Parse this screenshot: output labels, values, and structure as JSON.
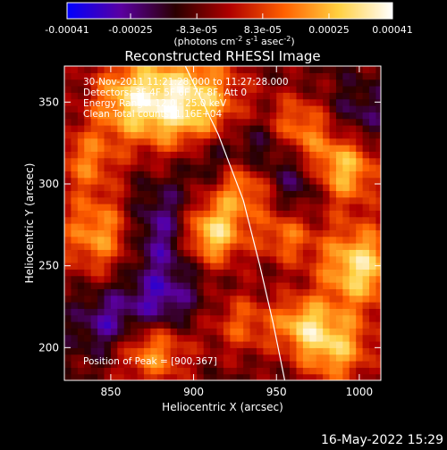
{
  "colorbar": {
    "tick_labels": [
      "-0.00041",
      "-0.00025",
      "-8.3e-05",
      "8.3e-05",
      "0.00025",
      "0.00041"
    ],
    "tick_values": [
      -0.00041,
      -0.00025,
      -8.3e-05,
      8.3e-05,
      0.00025,
      0.00041
    ],
    "range": [
      -0.00041,
      0.00041
    ],
    "units_prefix": "(photons cm",
    "units_exp1": "-2",
    "units_mid": " s",
    "units_exp2": "-1",
    "units_suffix": " asec",
    "units_exp3": "-2",
    "units_close": ")",
    "colors": [
      "#0000ff",
      "#5a00a0",
      "#2a0000",
      "#b00000",
      "#ff6000",
      "#ffd040",
      "#ffffff"
    ]
  },
  "chart_data": {
    "type": "heatmap",
    "title": "Reconstructed RHESSI Image",
    "xlabel": "Heliocentric X (arcsec)",
    "ylabel": "Heliocentric Y (arcsec)",
    "xlim": [
      822,
      1013
    ],
    "ylim": [
      180,
      372
    ],
    "x_ticks": [
      850,
      900,
      950,
      1000
    ],
    "y_ticks": [
      200,
      250,
      300,
      350
    ],
    "annotations": [
      "30-Nov-2011 11:21:28.000 to 11:27:28.000",
      "Detectors: 3F 4F 5F 6F 7F 8F, Att 0",
      "Energy Range: 12.0 - 25.0 keV",
      "Clean     Total counts: 1.16E+04"
    ],
    "peak_label": "Position of Peak = [900,367]",
    "peak": [
      900,
      367
    ],
    "limb_curve": [
      [
        895,
        372
      ],
      [
        915,
        330
      ],
      [
        930,
        290
      ],
      [
        940,
        250
      ],
      [
        948,
        215
      ],
      [
        955,
        180
      ]
    ],
    "hotspots": [
      {
        "x": 898,
        "y": 350,
        "a": 0.9,
        "s": 22
      },
      {
        "x": 862,
        "y": 352,
        "a": 0.7,
        "s": 18
      },
      {
        "x": 910,
        "y": 270,
        "a": 1.0,
        "s": 14
      },
      {
        "x": 930,
        "y": 300,
        "a": 0.7,
        "s": 14
      },
      {
        "x": 962,
        "y": 335,
        "a": 0.6,
        "s": 14
      },
      {
        "x": 990,
        "y": 310,
        "a": 0.8,
        "s": 16
      },
      {
        "x": 1000,
        "y": 250,
        "a": 0.9,
        "s": 18
      },
      {
        "x": 985,
        "y": 200,
        "a": 0.75,
        "s": 16
      },
      {
        "x": 965,
        "y": 215,
        "a": 0.6,
        "s": 12
      },
      {
        "x": 845,
        "y": 270,
        "a": 0.75,
        "s": 18
      },
      {
        "x": 835,
        "y": 315,
        "a": 0.5,
        "s": 14
      },
      {
        "x": 875,
        "y": 200,
        "a": 0.7,
        "s": 16
      },
      {
        "x": 930,
        "y": 215,
        "a": 0.45,
        "s": 14
      },
      {
        "x": 955,
        "y": 268,
        "a": 0.5,
        "s": 12
      }
    ],
    "coldspots": [
      {
        "x": 880,
        "y": 270,
        "a": 0.55,
        "s": 20
      },
      {
        "x": 880,
        "y": 225,
        "a": 0.5,
        "s": 14
      },
      {
        "x": 850,
        "y": 215,
        "a": 0.45,
        "s": 14
      },
      {
        "x": 940,
        "y": 320,
        "a": 0.45,
        "s": 16
      },
      {
        "x": 910,
        "y": 315,
        "a": 0.35,
        "s": 12
      },
      {
        "x": 965,
        "y": 300,
        "a": 0.35,
        "s": 12
      },
      {
        "x": 1000,
        "y": 340,
        "a": 0.3,
        "s": 14
      }
    ]
  },
  "timestamp": "16-May-2022 15:29"
}
